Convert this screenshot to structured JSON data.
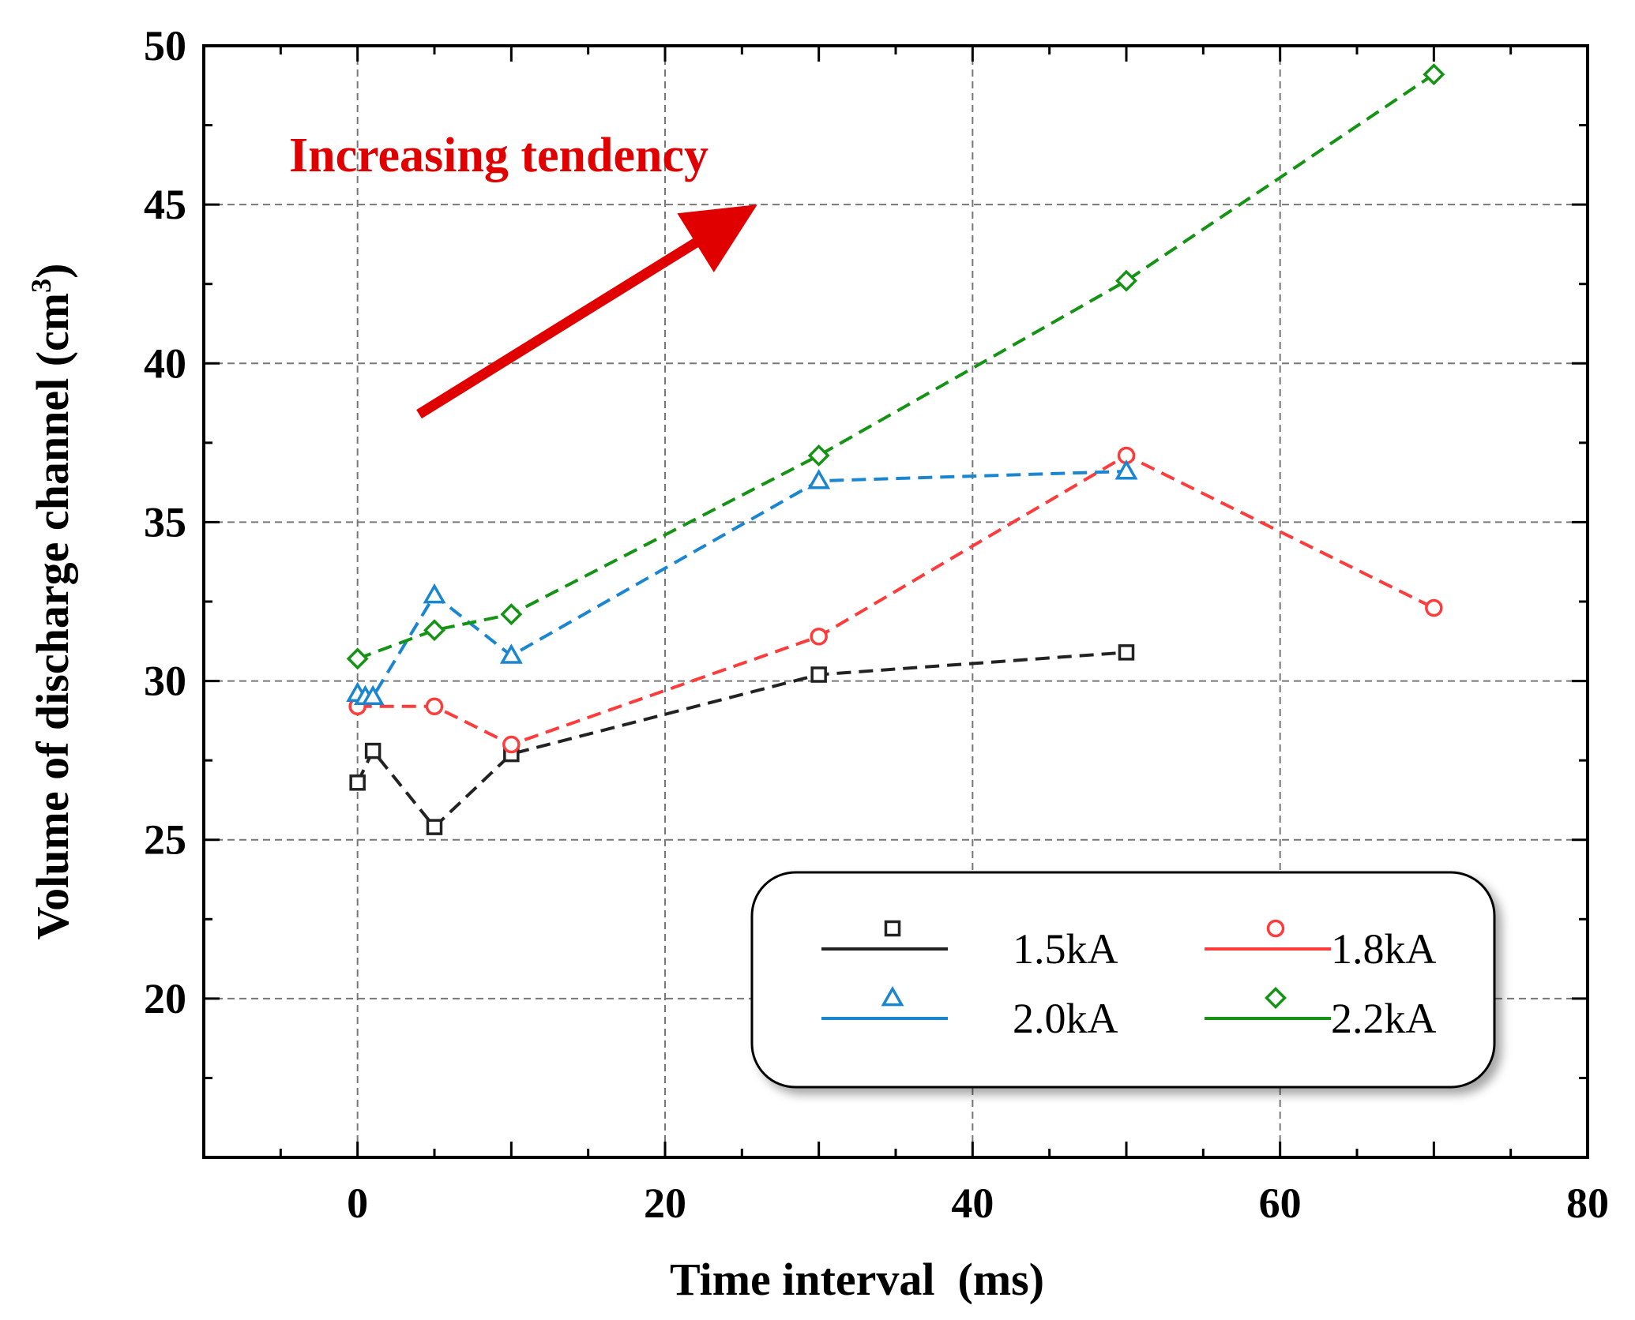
{
  "chart_data": {
    "type": "line",
    "title": "",
    "xlabel": "Time interval  (ms)",
    "ylabel": "Volume of discharge channel (cm",
    "ylabel_superscript": "3",
    "ylabel_suffix": ")",
    "xlim": [
      -10,
      80
    ],
    "ylim": [
      15,
      50
    ],
    "x_ticks": [
      0,
      20,
      40,
      60,
      80
    ],
    "y_ticks": [
      20,
      25,
      30,
      35,
      40,
      45,
      50
    ],
    "grid": true,
    "legend_position": "bottom-right",
    "annotation": {
      "text": "Increasing tendency",
      "color": "#e00000",
      "arrow_from": [
        4,
        38.4
      ],
      "arrow_to": [
        26,
        45
      ]
    },
    "series": [
      {
        "name": "1.5kA",
        "color": "#222222",
        "marker": "square",
        "x": [
          0,
          1,
          5,
          10,
          30,
          50
        ],
        "y": [
          26.8,
          27.8,
          25.4,
          27.7,
          30.2,
          30.9
        ]
      },
      {
        "name": "1.8kA",
        "color": "#ff3b3b",
        "marker": "circle",
        "x": [
          0,
          5,
          10,
          30,
          50,
          70
        ],
        "y": [
          29.2,
          29.2,
          28.0,
          31.4,
          37.1,
          32.3
        ]
      },
      {
        "name": "2.0kA",
        "color": "#1a86d0",
        "marker": "triangle",
        "x": [
          0,
          0.5,
          1,
          5,
          10,
          30,
          50
        ],
        "y": [
          29.6,
          29.5,
          29.5,
          32.7,
          30.8,
          36.3,
          36.6
        ]
      },
      {
        "name": "2.2kA",
        "color": "#159315",
        "marker": "diamond",
        "x": [
          0,
          5,
          10,
          30,
          50,
          70
        ],
        "y": [
          30.7,
          31.6,
          32.1,
          37.1,
          42.6,
          49.1
        ]
      }
    ]
  }
}
